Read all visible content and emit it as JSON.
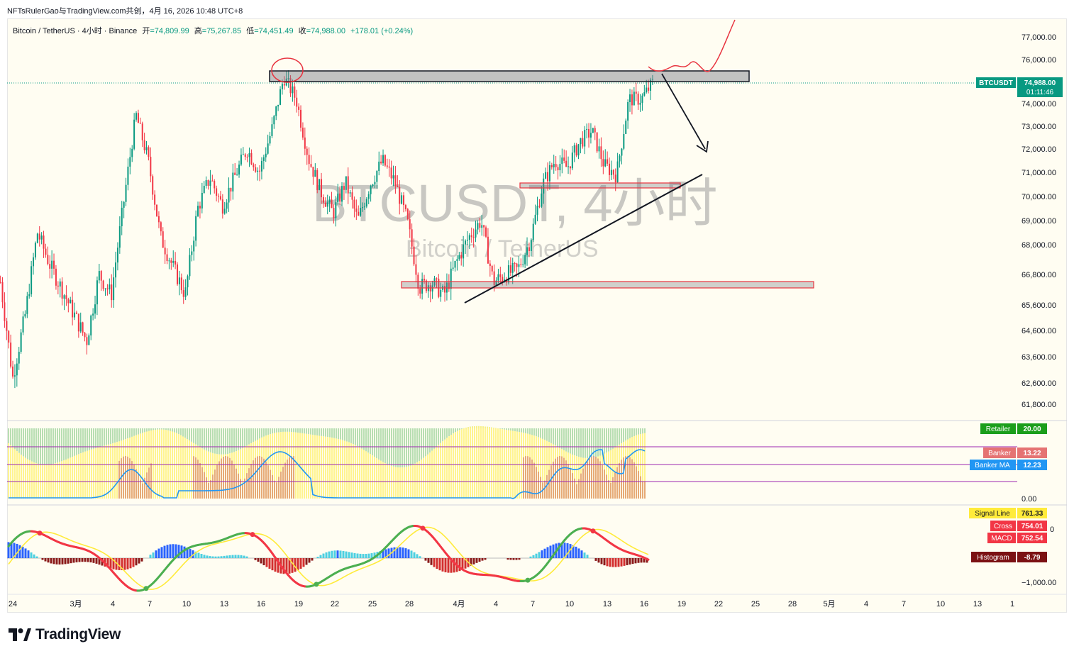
{
  "caption": "NFTsRulerGao与TradingView.com共创，4月 16, 2026 10:48 UTC+8",
  "legend": {
    "symbol": "Bitcoin / TetherUS · 4小时 · Binance",
    "open_label": "开",
    "open": "=74,809.99",
    "high_label": "高",
    "high": "=75,267.85",
    "low_label": "低",
    "low": "=74,451.49",
    "close_label": "收",
    "close": "=74,988.00",
    "change": "+178.01 (+0.24%)"
  },
  "watermark": {
    "main": "BTCUSDT, 4小时",
    "sub": "Bitcoin / TetherUS"
  },
  "price_tag": {
    "symbol": "BTCUSDT",
    "price": "74,988.00",
    "countdown": "01:11:46"
  },
  "indicator_labels": {
    "retailer": "Retailer",
    "retailer_val": "20.00",
    "banker": "Banker",
    "banker_val": "13.22",
    "banker_ma": "Banker MA",
    "banker_ma_val": "12.23",
    "zero": "0.00",
    "signal": "Signal Line",
    "signal_val": "761.33",
    "cross": "Cross",
    "cross_val": "754.01",
    "macd": "MACD",
    "macd_val": "752.54",
    "hist": "Histogram",
    "hist_val": "-8.79",
    "macd_tick_low": "−1,000.00",
    "macd_tick_partial": "0"
  },
  "logo": "TradingView",
  "colors": {
    "up": "#089981",
    "down": "#f23645",
    "accent_red": "#e8333f",
    "signal_yellow": "#ffeb3b",
    "banker_blue": "#2962ff"
  },
  "chart_data": {
    "type": "candlestick",
    "symbol": "BTCUSDT",
    "interval": "4小时",
    "exchange": "Binance",
    "last_price": 74988.0,
    "y_ticks": [
      77000,
      76000,
      74000,
      73000,
      72000,
      71000,
      70000,
      69000,
      68000,
      66800,
      65600,
      64600,
      63600,
      62600,
      61800
    ],
    "y_tick_labels": [
      "77,000.00",
      "76,000.00",
      "74,000.00",
      "73,000.00",
      "72,000.00",
      "71,000.00",
      "70,000.00",
      "69,000.00",
      "68,000.00",
      "66,800.00",
      "65,600.00",
      "64,600.00",
      "63,600.00",
      "62,600.00",
      "61,800.00"
    ],
    "x_ticks": [
      "24",
      "3月",
      "4",
      "7",
      "10",
      "13",
      "16",
      "19",
      "22",
      "25",
      "28",
      "4月",
      "4",
      "7",
      "10",
      "13",
      "16",
      "19",
      "22",
      "25",
      "28",
      "5月",
      "4",
      "7",
      "10",
      "13",
      "1"
    ],
    "price_path": [
      [
        "02-23",
        66500
      ],
      [
        "02-24",
        62800
      ],
      [
        "02-25",
        65200
      ],
      [
        "02-26",
        68500
      ],
      [
        "02-27",
        67200
      ],
      [
        "03-01",
        64200
      ],
      [
        "03-02",
        66800
      ],
      [
        "03-03",
        66000
      ],
      [
        "03-05",
        73500
      ],
      [
        "03-06",
        71500
      ],
      [
        "03-07",
        68300
      ],
      [
        "03-08",
        67100
      ],
      [
        "03-09",
        66000
      ],
      [
        "03-10",
        69500
      ],
      [
        "03-11",
        70800
      ],
      [
        "03-12",
        69600
      ],
      [
        "03-13",
        70800
      ],
      [
        "03-14",
        72000
      ],
      [
        "03-15",
        71000
      ],
      [
        "03-16",
        72800
      ],
      [
        "03-17",
        75200
      ],
      [
        "03-18",
        74200
      ],
      [
        "03-19",
        71600
      ],
      [
        "03-20",
        70200
      ],
      [
        "03-21",
        69300
      ],
      [
        "03-22",
        70600
      ],
      [
        "03-23",
        69000
      ],
      [
        "03-24",
        70500
      ],
      [
        "03-25",
        71500
      ],
      [
        "03-26",
        70600
      ],
      [
        "03-27",
        69000
      ],
      [
        "03-28",
        66300
      ],
      [
        "03-29",
        66500
      ],
      [
        "03-30",
        66000
      ],
      [
        "03-31",
        67300
      ],
      [
        "04-01",
        68300
      ],
      [
        "04-02",
        69000
      ],
      [
        "04-03",
        66500
      ],
      [
        "04-04",
        66800
      ],
      [
        "04-05",
        67000
      ],
      [
        "04-06",
        68200
      ],
      [
        "04-07",
        70500
      ],
      [
        "04-08",
        71500
      ],
      [
        "04-09",
        71200
      ],
      [
        "04-10",
        72300
      ],
      [
        "04-11",
        72800
      ],
      [
        "04-12",
        71300
      ],
      [
        "04-13",
        70900
      ],
      [
        "04-14",
        74200
      ],
      [
        "04-15",
        74200
      ],
      [
        "04-16",
        74988
      ]
    ],
    "annotations": {
      "resistance_zone": [
        75000,
        75480
      ],
      "support_zone_upper": [
        70300,
        70600
      ],
      "support_zone_lower": [
        66400,
        66700
      ],
      "trendline": [
        [
          "04-02",
          65600
        ],
        [
          "04-21",
          71000
        ]
      ]
    },
    "panels": [
      {
        "name": "Banker/Retailer",
        "series": [
          {
            "name": "Retailer",
            "last": 20.0
          },
          {
            "name": "Banker",
            "last": 13.22
          },
          {
            "name": "Banker MA",
            "last": 12.23
          }
        ]
      },
      {
        "name": "MACD",
        "series": [
          {
            "name": "Signal Line",
            "last": 761.33
          },
          {
            "name": "Cross",
            "last": 754.01
          },
          {
            "name": "MACD",
            "last": 752.54
          },
          {
            "name": "Histogram",
            "last": -8.79
          }
        ]
      }
    ]
  }
}
